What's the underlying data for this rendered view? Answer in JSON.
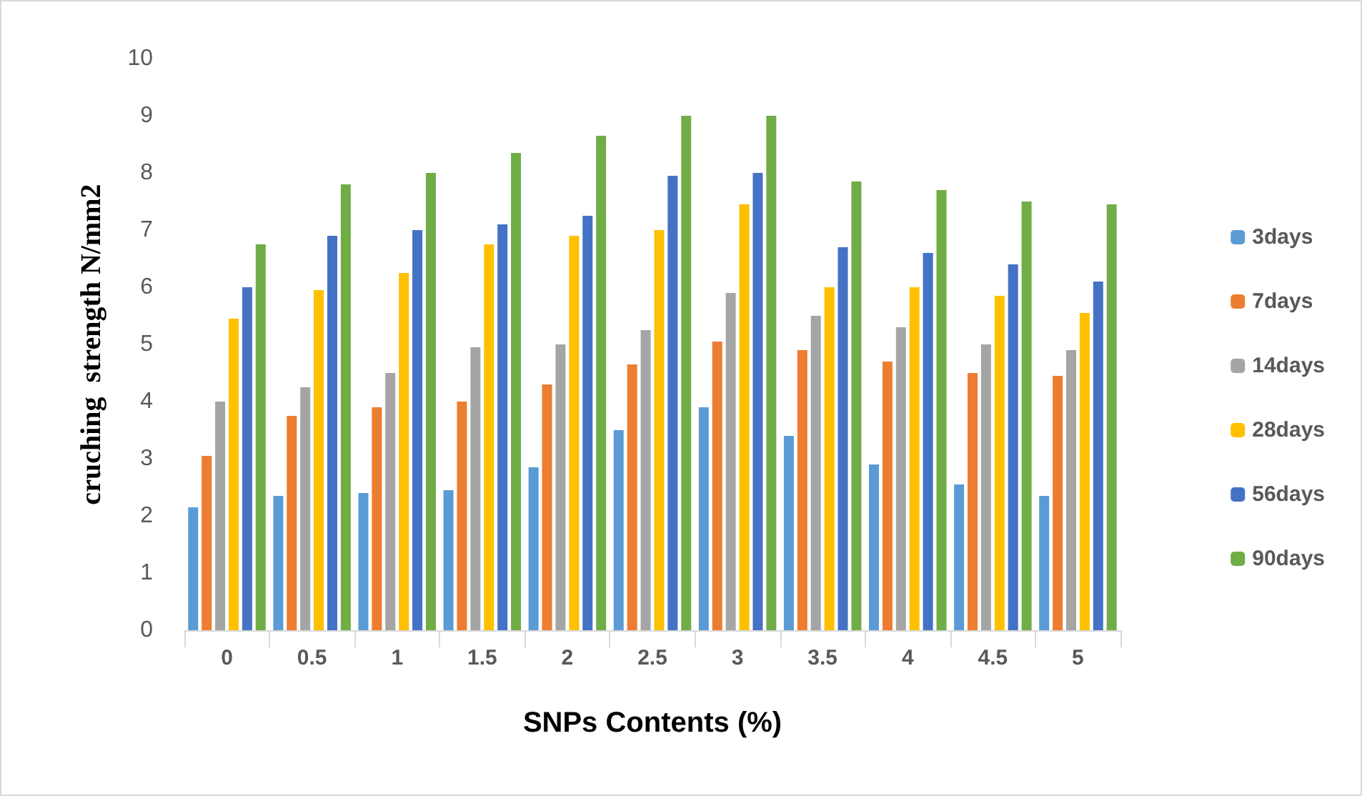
{
  "chart_data": {
    "type": "bar",
    "xlabel": "SNPs Contents (%)",
    "ylabel": "cruching  strength N/mm2",
    "categories": [
      "0",
      "0.5",
      "1",
      "1.5",
      "2",
      "2.5",
      "3",
      "3.5",
      "4",
      "4.5",
      "5"
    ],
    "series": [
      {
        "name": "3days",
        "color": "#5b9bd5",
        "values": [
          2.15,
          2.35,
          2.4,
          2.45,
          2.85,
          3.5,
          3.9,
          3.4,
          2.9,
          2.55,
          2.35
        ]
      },
      {
        "name": "7days",
        "color": "#ed7d31",
        "values": [
          3.05,
          3.75,
          3.9,
          4.0,
          4.3,
          4.65,
          5.05,
          4.9,
          4.7,
          4.5,
          4.45
        ]
      },
      {
        "name": "14days",
        "color": "#a5a5a5",
        "values": [
          4.0,
          4.25,
          4.5,
          4.95,
          5.0,
          5.25,
          5.9,
          5.5,
          5.3,
          5.0,
          4.9
        ]
      },
      {
        "name": "28days",
        "color": "#ffc000",
        "values": [
          5.45,
          5.95,
          6.25,
          6.75,
          6.9,
          7.0,
          7.45,
          6.0,
          6.0,
          5.85,
          5.55
        ]
      },
      {
        "name": "56days",
        "color": "#4472c4",
        "values": [
          6.0,
          6.9,
          7.0,
          7.1,
          7.25,
          7.95,
          8.0,
          6.7,
          6.6,
          6.4,
          6.1
        ]
      },
      {
        "name": "90days",
        "color": "#70ad47",
        "values": [
          6.75,
          7.8,
          8.0,
          8.35,
          8.65,
          9.0,
          9.0,
          7.85,
          7.7,
          7.5,
          7.45
        ]
      }
    ],
    "ylim": [
      0,
      10
    ],
    "yticks": [
      0,
      1,
      2,
      3,
      4,
      5,
      6,
      7,
      8,
      9,
      10
    ],
    "grid": false,
    "legend": "right"
  }
}
